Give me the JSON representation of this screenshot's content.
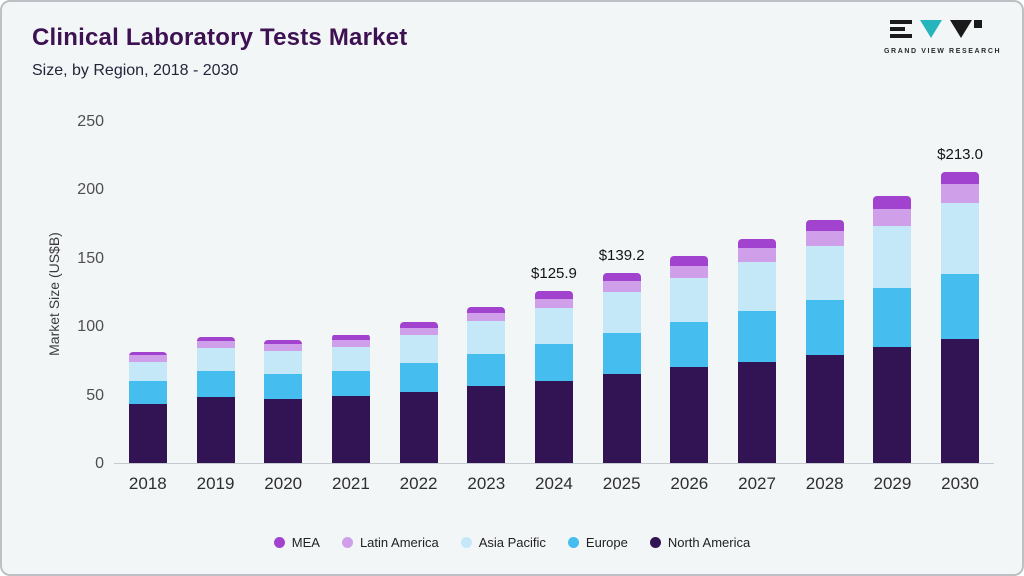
{
  "header": {
    "title": "Clinical Laboratory Tests Market",
    "subtitle": "Size, by Region, 2018 - 2030"
  },
  "logo": {
    "brand": "GRAND VIEW RESEARCH",
    "teal": "#27b5bd",
    "dark": "#1a1a1a"
  },
  "chart_data": {
    "type": "bar",
    "stacked": true,
    "title": "Clinical Laboratory Tests Market Size, by Region, 2018 - 2030",
    "ylabel": "Market Size (US$B)",
    "xlabel": "",
    "ylim": [
      0,
      250
    ],
    "yticks": [
      0,
      50,
      100,
      150,
      200,
      250
    ],
    "grid": false,
    "legend_position": "bottom",
    "categories": [
      "2018",
      "2019",
      "2020",
      "2021",
      "2022",
      "2023",
      "2024",
      "2025",
      "2026",
      "2027",
      "2028",
      "2029",
      "2030"
    ],
    "series": [
      {
        "name": "North America",
        "color": "#321455",
        "values": [
          43,
          48,
          47,
          49,
          52,
          56,
          60,
          65,
          70,
          74,
          79,
          85,
          91
        ]
      },
      {
        "name": "Europe",
        "color": "#45bdee",
        "values": [
          17,
          19,
          18,
          18,
          21,
          24,
          27,
          30,
          33,
          37,
          40,
          43,
          47
        ]
      },
      {
        "name": "Asia Pacific",
        "color": "#c4e8f8",
        "values": [
          14,
          17,
          17,
          18,
          21,
          24,
          26,
          30,
          32,
          36,
          40,
          45,
          52
        ]
      },
      {
        "name": "Latin America",
        "color": "#cfa0e9",
        "values": [
          5,
          5,
          5,
          5,
          5,
          6,
          7,
          8,
          9,
          10,
          11,
          13,
          14
        ]
      },
      {
        "name": "MEA",
        "color": "#a243cf",
        "values": [
          2,
          3,
          3,
          4,
          4,
          4,
          5.9,
          6.2,
          7,
          7,
          8,
          9,
          9
        ]
      }
    ],
    "totals": [
      81,
      92,
      90,
      94,
      103,
      114,
      125.9,
      139.2,
      151,
      164,
      178,
      195,
      213
    ],
    "annotations": [
      {
        "category": "2024",
        "text": "$125.9"
      },
      {
        "category": "2025",
        "text": "$139.2"
      },
      {
        "category": "2030",
        "text": "$213.0"
      }
    ],
    "legend": [
      "MEA",
      "Latin America",
      "Asia Pacific",
      "Europe",
      "North America"
    ]
  }
}
